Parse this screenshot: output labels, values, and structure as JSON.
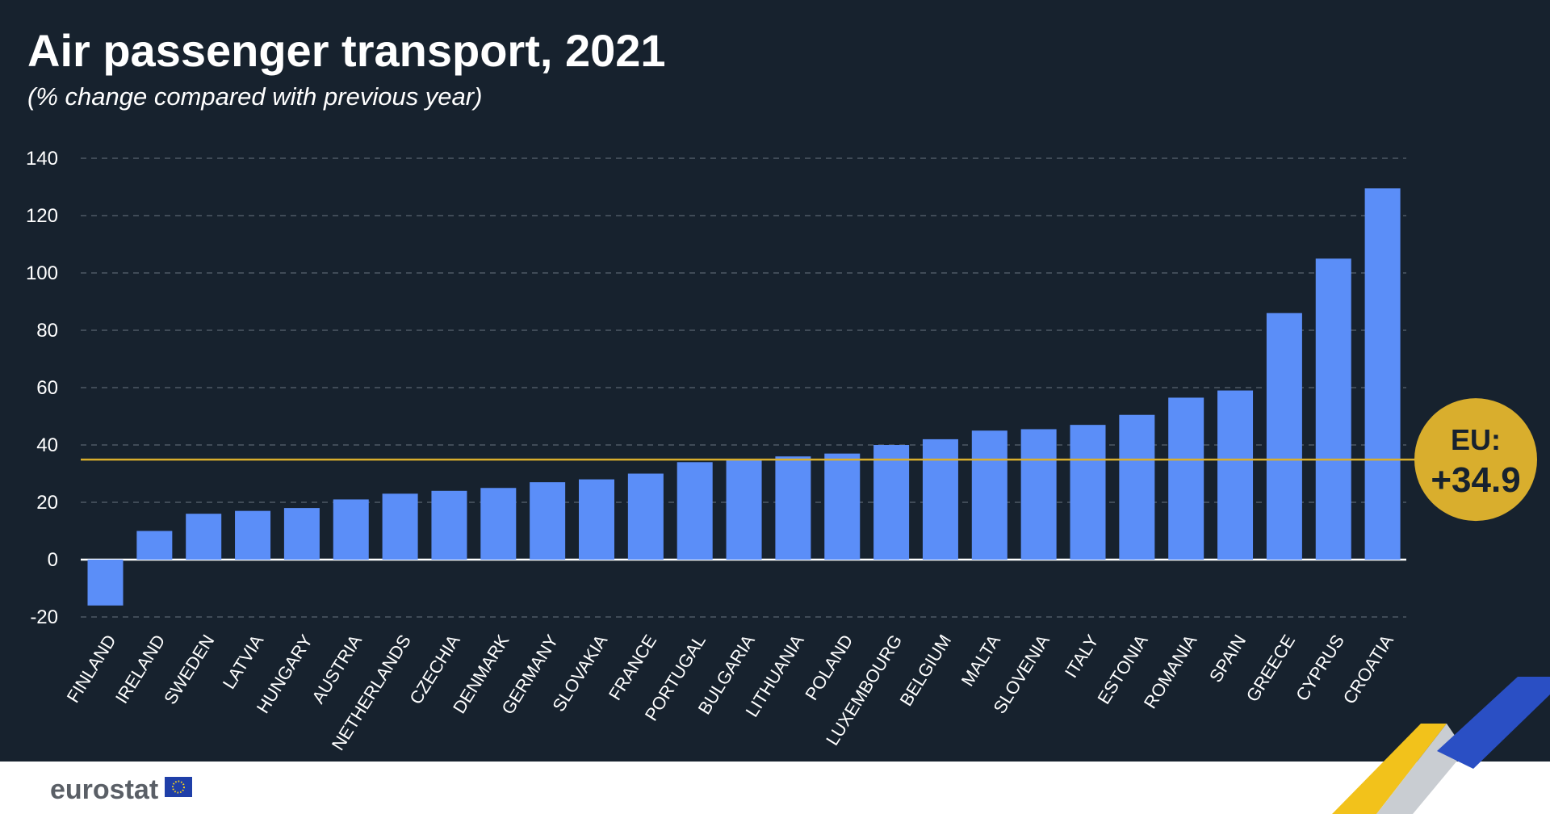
{
  "chart_data": {
    "type": "bar",
    "title": "Air passenger transport, 2021",
    "subtitle": "(% change compared with previous year)",
    "categories": [
      "FINLAND",
      "IRELAND",
      "SWEDEN",
      "LATVIA",
      "HUNGARY",
      "AUSTRIA",
      "NETHERLANDS",
      "CZECHIA",
      "DENMARK",
      "GERMANY",
      "SLOVAKIA",
      "FRANCE",
      "PORTUGAL",
      "BULGARIA",
      "LITHUANIA",
      "POLAND",
      "LUXEMBOURG",
      "BELGIUM",
      "MALTA",
      "SLOVENIA",
      "ITALY",
      "ESTONIA",
      "ROMANIA",
      "SPAIN",
      "GREECE",
      "CYPRUS",
      "CROATIA"
    ],
    "values": [
      -16,
      10,
      16,
      17,
      18,
      21,
      23,
      24,
      25,
      27,
      28,
      30,
      34,
      35,
      36,
      37,
      40,
      42,
      45,
      45.5,
      47,
      50.5,
      56.5,
      59,
      86,
      105,
      129.5
    ],
    "yticks": [
      -20,
      0,
      20,
      40,
      60,
      80,
      100,
      120,
      140
    ],
    "ylim": [
      -20,
      140
    ],
    "grid": true,
    "reference_line": {
      "value": 34.9,
      "label_line1": "EU:",
      "label_line2": "+34.9"
    },
    "colors": {
      "bar": "#5b8ef8",
      "background": "#17222e",
      "reference": "#d9ae2d",
      "grid": "#5a6470"
    }
  },
  "footer": {
    "logo_text": "eurostat"
  }
}
